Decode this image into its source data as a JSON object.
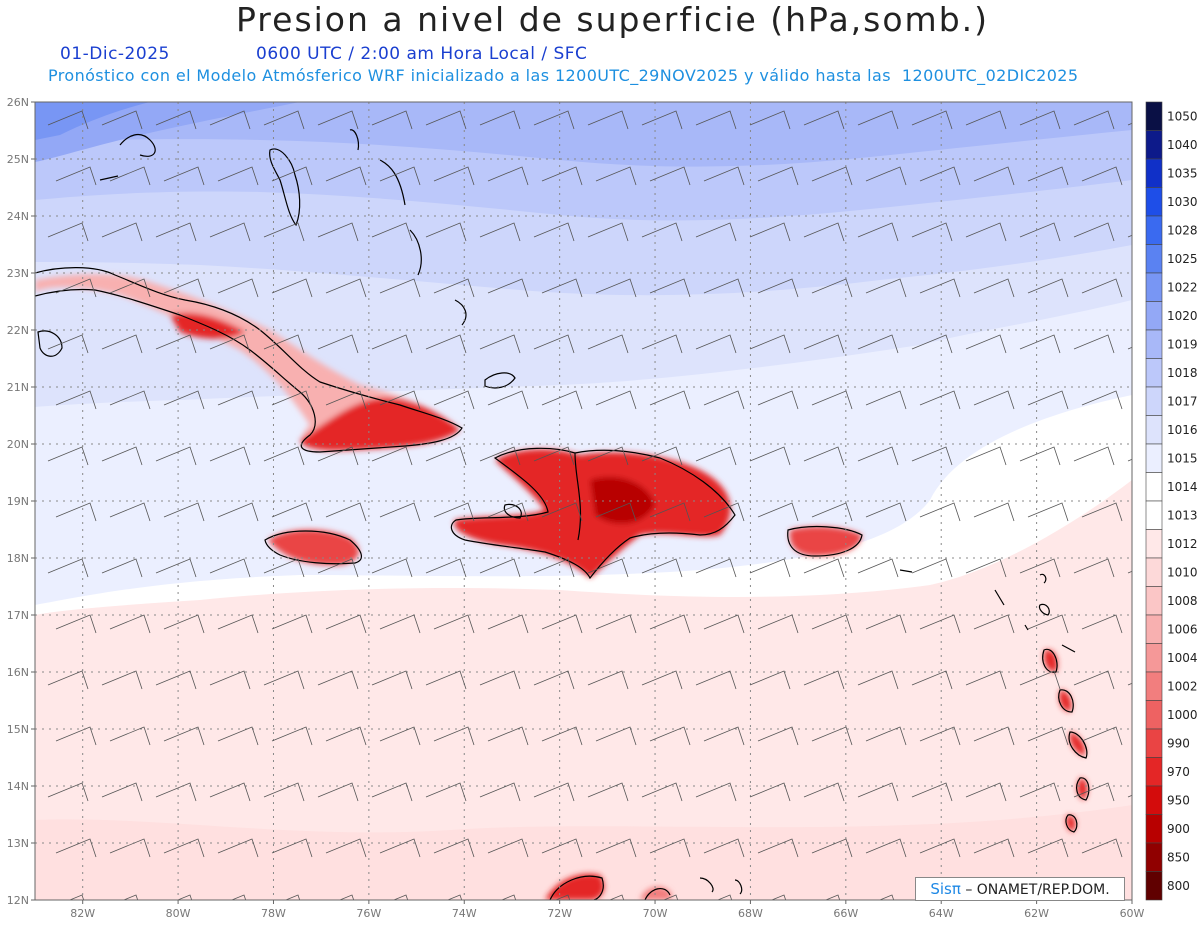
{
  "title": "Presion a nivel de superficie (hPa,somb.)",
  "date_label": "01-Dic-2025",
  "time_label": "0600 UTC / 2:00 am Hora Local / SFC",
  "forecast_line": "Pronóstico con el Modelo Atmósferico WRF inicializado a las 1200UTC_29NOV2025 y válido hasta las  1200UTC_02DIC2025",
  "credit": {
    "brand": "Sisπ",
    "org": "– ONAMET/REP.DOM."
  },
  "map": {
    "lon_range": [
      -83.0,
      -60.0
    ],
    "lat_range": [
      12.0,
      26.0
    ],
    "lat_ticks": [
      "26N",
      "25N",
      "24N",
      "23N",
      "22N",
      "21N",
      "20N",
      "19N",
      "18N",
      "17N",
      "16N",
      "15N",
      "14N",
      "13N",
      "12N"
    ],
    "lon_ticks": [
      "82W",
      "80W",
      "78W",
      "76W",
      "74W",
      "72W",
      "70W",
      "68W",
      "66W",
      "64W",
      "62W",
      "60W"
    ]
  },
  "colorbar": {
    "labels": [
      "1050",
      "1040",
      "1035",
      "1030",
      "1028",
      "1025",
      "1022",
      "1020",
      "1019",
      "1018",
      "1017",
      "1016",
      "1015",
      "1014",
      "1013",
      "1012",
      "1010",
      "1008",
      "1006",
      "1004",
      "1002",
      "1000",
      "990",
      "970",
      "950",
      "900",
      "850",
      "800"
    ],
    "colors": [
      "#0a1045",
      "#0d1a8a",
      "#1030c8",
      "#1e4ee8",
      "#3a6af0",
      "#5a82f2",
      "#7896f4",
      "#93a8f6",
      "#a8b8f8",
      "#bcc8fa",
      "#cdd6fb",
      "#dde3fc",
      "#ebefff",
      "#ffffff",
      "#ffffff",
      "#ffe8e8",
      "#fdd9d9",
      "#fbc6c6",
      "#f8b0b0",
      "#f59898",
      "#f27e7e",
      "#ee6262",
      "#ea4444",
      "#e42626",
      "#d40c0c",
      "#b80000",
      "#900000",
      "#600000"
    ]
  }
}
